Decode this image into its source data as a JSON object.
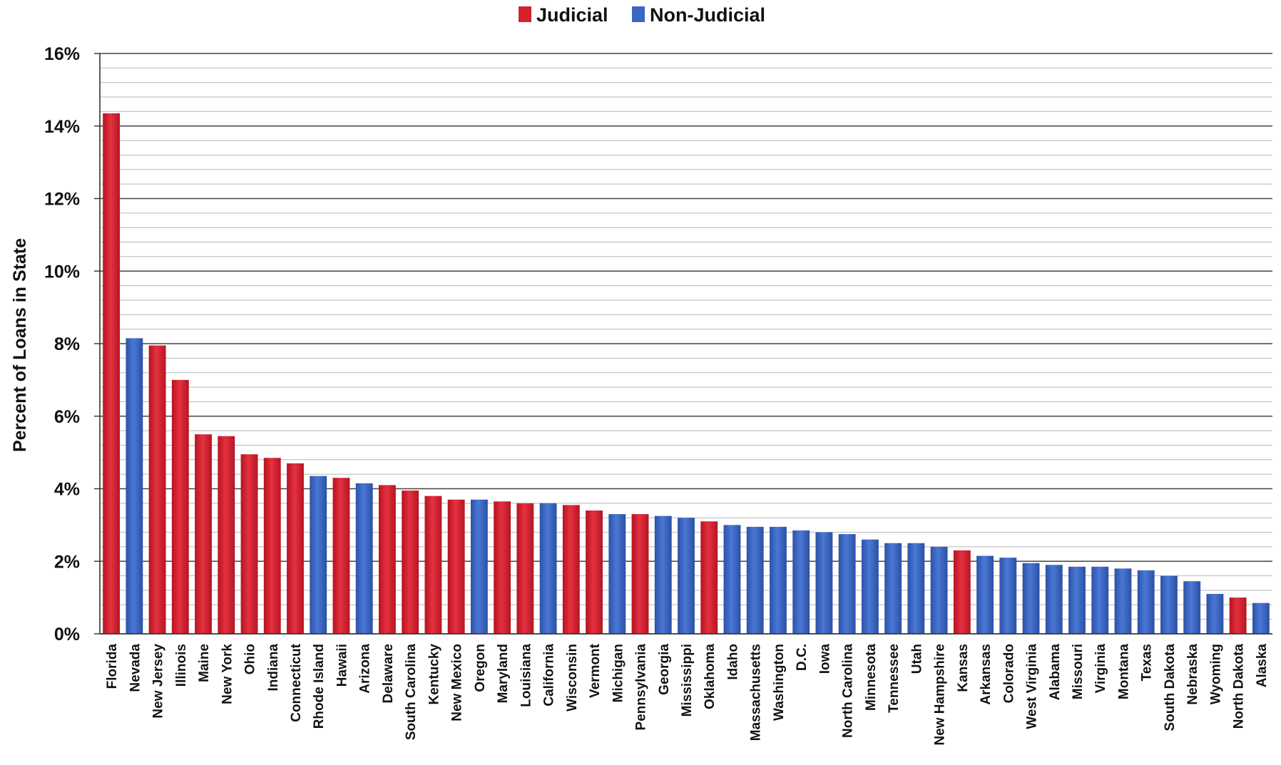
{
  "chart_data": {
    "type": "bar",
    "title": "",
    "xlabel": "",
    "ylabel": "Percent of Loans in State",
    "ylim": [
      0,
      16
    ],
    "y_ticks": [
      "0%",
      "2%",
      "4%",
      "6%",
      "8%",
      "10%",
      "12%",
      "14%",
      "16%"
    ],
    "grid": true,
    "legend_position": "top-center",
    "legend": [
      {
        "name": "Judicial",
        "color": "#d6212f"
      },
      {
        "name": "Non-Judicial",
        "color": "#3a66c4"
      }
    ],
    "categories": [
      "Florida",
      "Nevada",
      "New Jersey",
      "Illinois",
      "Maine",
      "New York",
      "Ohio",
      "Indiana",
      "Connecticut",
      "Rhode Island",
      "Hawaii",
      "Arizona",
      "Delaware",
      "South Carolina",
      "Kentucky",
      "New Mexico",
      "Oregon",
      "Maryland",
      "Louisiana",
      "California",
      "Wisconsin",
      "Vermont",
      "Michigan",
      "Pennsylvania",
      "Georgia",
      "Mississippi",
      "Oklahoma",
      "Idaho",
      "Massachusetts",
      "Washington",
      "D.C.",
      "Iowa",
      "North Carolina",
      "Minnesota",
      "Tennessee",
      "Utah",
      "New Hampshire",
      "Kansas",
      "Arkansas",
      "Colorado",
      "West Virginia",
      "Alabama",
      "Missouri",
      "Virginia",
      "Montana",
      "Texas",
      "South Dakota",
      "Nebraska",
      "Wyoming",
      "North Dakota",
      "Alaska"
    ],
    "values": [
      14.35,
      8.15,
      7.95,
      7.0,
      5.5,
      5.45,
      4.95,
      4.85,
      4.7,
      4.35,
      4.3,
      4.15,
      4.1,
      3.95,
      3.8,
      3.7,
      3.7,
      3.65,
      3.6,
      3.6,
      3.55,
      3.4,
      3.3,
      3.3,
      3.25,
      3.2,
      3.1,
      3.0,
      2.95,
      2.95,
      2.85,
      2.8,
      2.75,
      2.6,
      2.5,
      2.5,
      2.4,
      2.3,
      2.15,
      2.1,
      1.95,
      1.9,
      1.85,
      1.85,
      1.8,
      1.75,
      1.6,
      1.45,
      1.1,
      1.0,
      0.85
    ],
    "foreclosure_type": [
      "Judicial",
      "Non-Judicial",
      "Judicial",
      "Judicial",
      "Judicial",
      "Judicial",
      "Judicial",
      "Judicial",
      "Judicial",
      "Non-Judicial",
      "Judicial",
      "Non-Judicial",
      "Judicial",
      "Judicial",
      "Judicial",
      "Judicial",
      "Non-Judicial",
      "Judicial",
      "Judicial",
      "Non-Judicial",
      "Judicial",
      "Judicial",
      "Non-Judicial",
      "Judicial",
      "Non-Judicial",
      "Non-Judicial",
      "Judicial",
      "Non-Judicial",
      "Non-Judicial",
      "Non-Judicial",
      "Non-Judicial",
      "Non-Judicial",
      "Non-Judicial",
      "Non-Judicial",
      "Non-Judicial",
      "Non-Judicial",
      "Non-Judicial",
      "Judicial",
      "Non-Judicial",
      "Non-Judicial",
      "Non-Judicial",
      "Non-Judicial",
      "Non-Judicial",
      "Non-Judicial",
      "Non-Judicial",
      "Non-Judicial",
      "Non-Judicial",
      "Non-Judicial",
      "Non-Judicial",
      "Judicial",
      "Non-Judicial"
    ]
  }
}
